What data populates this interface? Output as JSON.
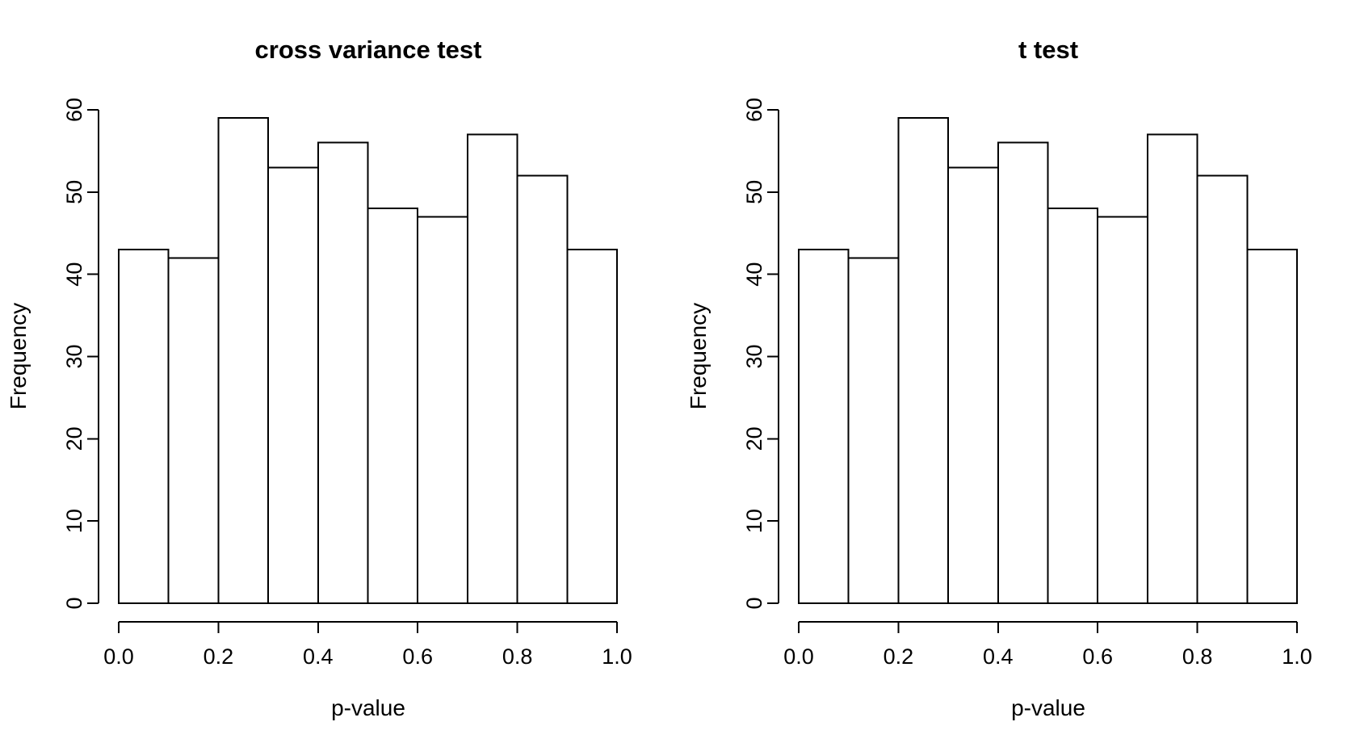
{
  "page": {
    "background": "#ffffff",
    "foreground": "#000000"
  },
  "chart_data": [
    {
      "type": "bar",
      "subtype": "histogram",
      "title": "cross variance test",
      "xlabel": "p-value",
      "ylabel": "Frequency",
      "bin_edges": [
        0.0,
        0.1,
        0.2,
        0.3,
        0.4,
        0.5,
        0.6,
        0.7,
        0.8,
        0.9,
        1.0
      ],
      "values": [
        43,
        42,
        59,
        53,
        56,
        48,
        47,
        57,
        52,
        43
      ],
      "xlim": [
        0.0,
        1.0
      ],
      "ylim": [
        0,
        60
      ],
      "xtick_values": [
        0.0,
        0.2,
        0.4,
        0.6,
        0.8,
        1.0
      ],
      "xtick_labels": [
        "0.0",
        "0.2",
        "0.4",
        "0.6",
        "0.8",
        "1.0"
      ],
      "ytick_values": [
        0,
        10,
        20,
        30,
        40,
        50,
        60
      ],
      "ytick_labels": [
        "0",
        "10",
        "20",
        "30",
        "40",
        "50",
        "60"
      ],
      "grid": false,
      "legend": false,
      "bar_fill": "#ffffff",
      "bar_stroke": "#000000"
    },
    {
      "type": "bar",
      "subtype": "histogram",
      "title": "t test",
      "xlabel": "p-value",
      "ylabel": "Frequency",
      "bin_edges": [
        0.0,
        0.1,
        0.2,
        0.3,
        0.4,
        0.5,
        0.6,
        0.7,
        0.8,
        0.9,
        1.0
      ],
      "values": [
        43,
        42,
        59,
        53,
        56,
        48,
        47,
        57,
        52,
        43
      ],
      "xlim": [
        0.0,
        1.0
      ],
      "ylim": [
        0,
        60
      ],
      "xtick_values": [
        0.0,
        0.2,
        0.4,
        0.6,
        0.8,
        1.0
      ],
      "xtick_labels": [
        "0.0",
        "0.2",
        "0.4",
        "0.6",
        "0.8",
        "1.0"
      ],
      "ytick_values": [
        0,
        10,
        20,
        30,
        40,
        50,
        60
      ],
      "ytick_labels": [
        "0",
        "10",
        "20",
        "30",
        "40",
        "50",
        "60"
      ],
      "grid": false,
      "legend": false,
      "bar_fill": "#ffffff",
      "bar_stroke": "#000000"
    }
  ]
}
